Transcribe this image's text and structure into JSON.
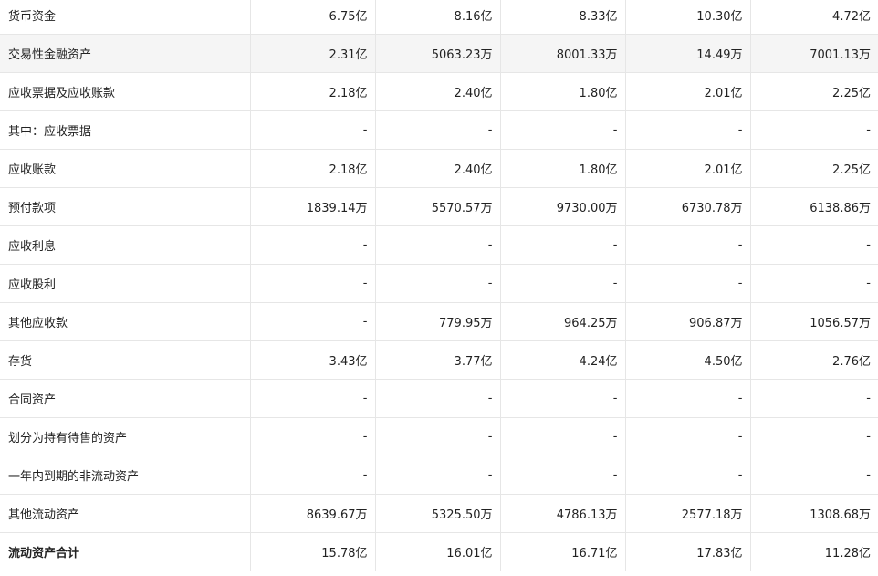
{
  "rows": [
    {
      "label": "货币资金",
      "values": [
        "6.75亿",
        "8.16亿",
        "8.33亿",
        "10.30亿",
        "4.72亿"
      ]
    },
    {
      "label": "交易性金融资产",
      "values": [
        "2.31亿",
        "5063.23万",
        "8001.33万",
        "14.49万",
        "7001.13万"
      ],
      "shaded": true
    },
    {
      "label": "应收票据及应收账款",
      "values": [
        "2.18亿",
        "2.40亿",
        "1.80亿",
        "2.01亿",
        "2.25亿"
      ]
    },
    {
      "label": "其中：应收票据",
      "values": [
        "-",
        "-",
        "-",
        "-",
        "-"
      ]
    },
    {
      "label": "应收账款",
      "values": [
        "2.18亿",
        "2.40亿",
        "1.80亿",
        "2.01亿",
        "2.25亿"
      ]
    },
    {
      "label": "预付款项",
      "values": [
        "1839.14万",
        "5570.57万",
        "9730.00万",
        "6730.78万",
        "6138.86万"
      ]
    },
    {
      "label": "应收利息",
      "values": [
        "-",
        "-",
        "-",
        "-",
        "-"
      ]
    },
    {
      "label": "应收股利",
      "values": [
        "-",
        "-",
        "-",
        "-",
        "-"
      ]
    },
    {
      "label": "其他应收款",
      "values": [
        "-",
        "779.95万",
        "964.25万",
        "906.87万",
        "1056.57万"
      ]
    },
    {
      "label": "存货",
      "values": [
        "3.43亿",
        "3.77亿",
        "4.24亿",
        "4.50亿",
        "2.76亿"
      ]
    },
    {
      "label": "合同资产",
      "values": [
        "-",
        "-",
        "-",
        "-",
        "-"
      ]
    },
    {
      "label": "划分为持有待售的资产",
      "values": [
        "-",
        "-",
        "-",
        "-",
        "-"
      ]
    },
    {
      "label": "一年内到期的非流动资产",
      "values": [
        "-",
        "-",
        "-",
        "-",
        "-"
      ]
    },
    {
      "label": "其他流动资产",
      "values": [
        "8639.67万",
        "5325.50万",
        "4786.13万",
        "2577.18万",
        "1308.68万"
      ]
    },
    {
      "label": "流动资产合计",
      "values": [
        "15.78亿",
        "16.01亿",
        "16.71亿",
        "17.83亿",
        "11.28亿"
      ],
      "bold": true
    }
  ]
}
